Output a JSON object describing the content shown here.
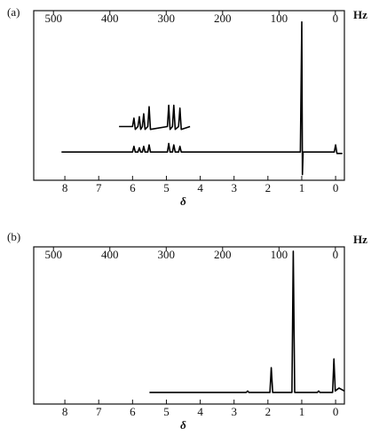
{
  "chart_data": [
    {
      "type": "line",
      "panel_label": "(a)",
      "x2_label": "Hz",
      "xlabel": "δ",
      "xlim": [
        8.92,
        -0.26
      ],
      "xticks": [
        8,
        7,
        6,
        5,
        4,
        3,
        2,
        1,
        0
      ],
      "x2lim": [
        535,
        -16
      ],
      "x2ticks": [
        500,
        400,
        300,
        200,
        100,
        0
      ],
      "ylim": [
        -20,
        100
      ],
      "series": [
        {
          "color": "#000000",
          "x": [
            8.1,
            6.0,
            5.96,
            5.92,
            5.84,
            5.8,
            5.76,
            5.71,
            5.67,
            5.63,
            5.55,
            5.51,
            5.47,
            4.97,
            4.93,
            4.89,
            4.82,
            4.78,
            4.74,
            4.64,
            4.6,
            4.56,
            1.04,
            1.0,
            0.98,
            0.96,
            0.04,
            0.0,
            -0.04,
            -0.2
          ],
          "values": [
            0,
            0,
            4,
            0,
            0,
            3,
            0,
            0,
            4,
            0,
            0,
            5,
            0,
            0,
            6,
            0,
            0,
            5,
            0,
            0,
            4,
            0,
            0,
            92,
            -16,
            0,
            0,
            5,
            -1,
            -1
          ]
        },
        {
          "color": "#000000",
          "x": [
            6.4,
            6.0,
            5.96,
            5.92,
            5.84,
            5.8,
            5.76,
            5.71,
            5.67,
            5.63,
            5.55,
            5.51,
            5.47,
            4.97,
            4.93,
            4.89,
            4.82,
            4.78,
            4.74,
            4.64,
            4.6,
            4.56,
            4.3
          ],
          "values": [
            18,
            18,
            24,
            16,
            18,
            25,
            16,
            18,
            27,
            16,
            18,
            32,
            16,
            18,
            33,
            16,
            18,
            33,
            16,
            18,
            31,
            16,
            18
          ]
        }
      ]
    },
    {
      "type": "line",
      "panel_label": "(b)",
      "x2_label": "Hz",
      "xlabel": "δ",
      "xlim": [
        8.92,
        -0.26
      ],
      "xticks": [
        8,
        7,
        6,
        5,
        4,
        3,
        2,
        1,
        0
      ],
      "x2lim": [
        535,
        -16
      ],
      "x2ticks": [
        500,
        400,
        300,
        200,
        100,
        0
      ],
      "ylim": [
        -8,
        100
      ],
      "series": [
        {
          "color": "#000000",
          "x": [
            5.5,
            2.64,
            2.6,
            2.56,
            1.94,
            1.9,
            1.86,
            1.29,
            1.25,
            1.21,
            0.54,
            0.5,
            0.46,
            0.09,
            0.05,
            0.01,
            -0.1,
            -0.26
          ],
          "values": [
            0,
            0,
            1,
            0,
            0,
            17,
            0,
            0,
            97,
            0,
            0,
            1,
            0,
            0,
            23,
            1,
            3,
            1
          ]
        }
      ]
    }
  ]
}
